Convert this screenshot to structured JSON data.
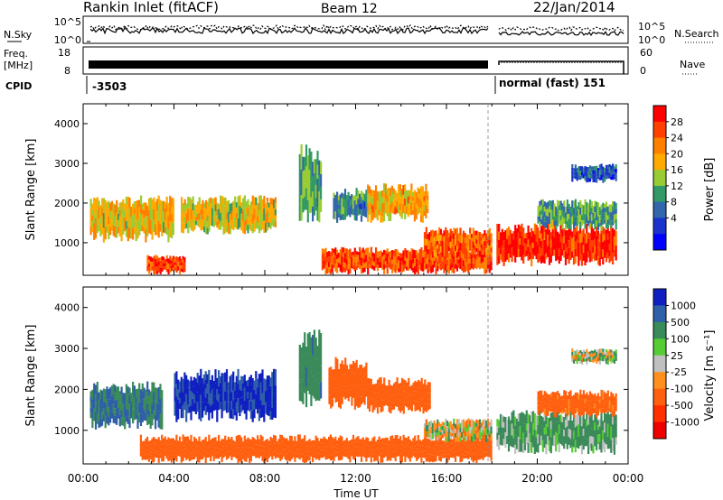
{
  "header": {
    "station": "Rankin Inlet (fitACF)",
    "beam": "Beam 12",
    "date": "22/Jan/2014"
  },
  "noise_panel": {
    "left_label": "N.Sky",
    "right_label": "N.Search",
    "ticks_left": [
      "10^5",
      "10^0"
    ],
    "ticks_right": [
      "10^5",
      "10^0"
    ]
  },
  "freq_panel": {
    "left_label_1": "Freq.",
    "left_label_2": "[MHz]",
    "right_label": "Nave",
    "ticks_left": [
      "18",
      "8"
    ],
    "ticks_right": [
      "60",
      "0"
    ]
  },
  "cpid": {
    "label": "CPID",
    "value_1": "-3503",
    "value_2": "normal (fast) 151"
  },
  "power_panel": {
    "ylabel": "Slant Range [km]",
    "colorbar_label": "Power [dB]",
    "colorbar_ticks": [
      "28",
      "24",
      "20",
      "16",
      "12",
      "8",
      "4"
    ],
    "colorbar_colors": [
      "#ff0000",
      "#ff4000",
      "#ff8000",
      "#ffaa00",
      "#99cc33",
      "#339966",
      "#3366aa",
      "#1a33cc",
      "#0000ff"
    ]
  },
  "velocity_panel": {
    "ylabel": "Slant Range [km]",
    "colorbar_label": "Velocity [m s⁻¹]",
    "colorbar_ticks": [
      "1000",
      "500",
      "100",
      "25",
      "-25",
      "-100",
      "-500",
      "-1000"
    ],
    "colorbar_colors": [
      "#1020c0",
      "#2e5fa8",
      "#3a8a5a",
      "#55cc33",
      "#c0c0c0",
      "#ff9020",
      "#ff6010",
      "#ff3000",
      "#ee0000"
    ]
  },
  "xaxis": {
    "label": "Time UT",
    "ticks": [
      "00:00",
      "04:00",
      "08:00",
      "12:00",
      "16:00",
      "20:00",
      "00:00"
    ]
  },
  "chart_data": {
    "type": "heatmap",
    "x_range_hours": [
      0,
      24
    ],
    "y_range_km": [
      180,
      4500
    ],
    "y_ticks": [
      1000,
      2000,
      3000,
      4000
    ],
    "grid": false,
    "power_regions": [
      {
        "t_start": 0.3,
        "t_end": 4.0,
        "r_low": 1000,
        "r_high": 2200,
        "level_db": 18
      },
      {
        "t_start": 2.8,
        "t_end": 4.5,
        "r_low": 200,
        "r_high": 700,
        "level_db": 27
      },
      {
        "t_start": 4.3,
        "t_end": 8.5,
        "r_low": 1200,
        "r_high": 2200,
        "level_db": 17
      },
      {
        "t_start": 9.5,
        "t_end": 10.5,
        "r_low": 1500,
        "r_high": 3500,
        "level_db": 12
      },
      {
        "t_start": 11.0,
        "t_end": 12.5,
        "r_low": 1500,
        "r_high": 2400,
        "level_db": 10
      },
      {
        "t_start": 12.5,
        "t_end": 15.2,
        "r_low": 1500,
        "r_high": 2500,
        "level_db": 20
      },
      {
        "t_start": 10.5,
        "t_end": 18.0,
        "r_low": 200,
        "r_high": 900,
        "level_db": 26
      },
      {
        "t_start": 15.0,
        "t_end": 18.0,
        "r_low": 600,
        "r_high": 1400,
        "level_db": 24
      },
      {
        "t_start": 18.2,
        "t_end": 23.5,
        "r_low": 400,
        "r_high": 1500,
        "level_db": 28
      },
      {
        "t_start": 20.0,
        "t_end": 23.5,
        "r_low": 1300,
        "r_high": 2100,
        "level_db": 12
      },
      {
        "t_start": 21.5,
        "t_end": 23.5,
        "r_low": 2500,
        "r_high": 3000,
        "level_db": 6
      }
    ],
    "velocity_regions": [
      {
        "t_start": 0.3,
        "t_end": 3.5,
        "r_low": 1000,
        "r_high": 2200,
        "velocity": 300
      },
      {
        "t_start": 4.0,
        "t_end": 8.5,
        "r_low": 1200,
        "r_high": 2500,
        "velocity": 800
      },
      {
        "t_start": 9.5,
        "t_end": 10.5,
        "r_low": 1500,
        "r_high": 3500,
        "velocity": 200
      },
      {
        "t_start": 10.8,
        "t_end": 12.5,
        "r_low": 1500,
        "r_high": 2800,
        "velocity": -300
      },
      {
        "t_start": 12.5,
        "t_end": 15.3,
        "r_low": 1400,
        "r_high": 2300,
        "velocity": -300
      },
      {
        "t_start": 2.5,
        "t_end": 18.0,
        "r_low": 200,
        "r_high": 900,
        "velocity": -250
      },
      {
        "t_start": 15.0,
        "t_end": 18.0,
        "r_low": 700,
        "r_high": 1300,
        "velocity": 0
      },
      {
        "t_start": 18.2,
        "t_end": 23.5,
        "r_low": 400,
        "r_high": 1500,
        "velocity": 100
      },
      {
        "t_start": 20.0,
        "t_end": 23.5,
        "r_low": 1300,
        "r_high": 2000,
        "velocity": -200
      },
      {
        "t_start": 21.5,
        "t_end": 23.5,
        "r_low": 2600,
        "r_high": 3000,
        "velocity": 0
      }
    ]
  }
}
